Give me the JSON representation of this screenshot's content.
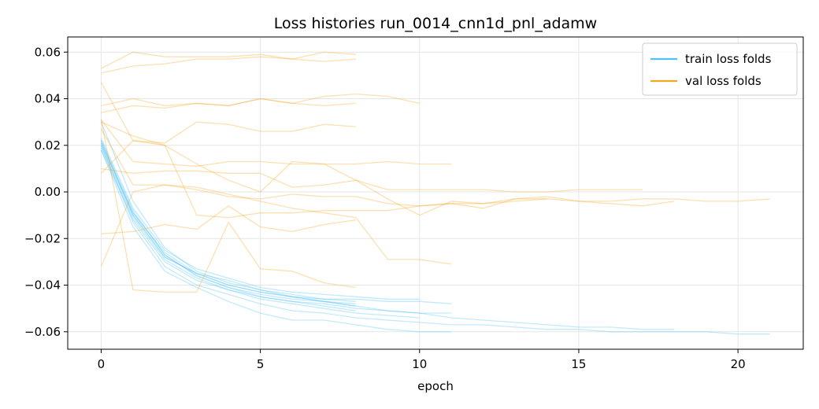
{
  "chart_data": {
    "type": "line",
    "title": "Loss histories run_0014_cnn1d_pnl_adamw",
    "xlabel": "epoch",
    "ylabel": "",
    "xlim": [
      -1.05,
      22.05
    ],
    "ylim": [
      -0.0675,
      0.0665
    ],
    "xticks": [
      0,
      5,
      10,
      15,
      20
    ],
    "yticks": [
      0.06,
      0.04,
      0.02,
      0.0,
      -0.02,
      -0.04,
      -0.06
    ],
    "ytick_labels": [
      "0.06",
      "0.04",
      "0.02",
      "0.00",
      "−0.02",
      "−0.04",
      "−0.06"
    ],
    "grid": true,
    "legend_position": "top-right",
    "legend": [
      {
        "label": "train loss folds",
        "color": "#4fc3f7"
      },
      {
        "label": "val loss folds",
        "color": "#f5a623"
      }
    ],
    "series": [
      {
        "group": "train",
        "color": "#4fc3f7",
        "x": [
          0,
          1,
          2,
          3,
          4,
          5,
          6,
          7,
          8
        ],
        "y": [
          0.021,
          -0.009,
          -0.026,
          -0.035,
          -0.04,
          -0.043,
          -0.045,
          -0.047,
          -0.049
        ]
      },
      {
        "group": "train",
        "color": "#4fc3f7",
        "x": [
          0,
          1,
          2,
          3,
          4,
          5,
          6,
          7,
          8
        ],
        "y": [
          0.022,
          -0.008,
          -0.027,
          -0.036,
          -0.041,
          -0.044,
          -0.046,
          -0.047,
          -0.048
        ]
      },
      {
        "group": "train",
        "color": "#4fc3f7",
        "x": [
          0,
          1,
          2,
          3,
          4,
          5,
          6,
          7,
          8
        ],
        "y": [
          0.018,
          -0.012,
          -0.03,
          -0.038,
          -0.042,
          -0.045,
          -0.047,
          -0.049,
          -0.051
        ]
      },
      {
        "group": "train",
        "color": "#4fc3f7",
        "x": [
          0,
          1,
          2,
          3,
          4,
          5,
          6,
          7,
          8
        ],
        "y": [
          0.02,
          -0.01,
          -0.028,
          -0.035,
          -0.038,
          -0.042,
          -0.044,
          -0.046,
          -0.047
        ]
      },
      {
        "group": "train",
        "color": "#4fc3f7",
        "x": [
          0,
          1,
          2,
          3,
          4,
          5,
          6,
          7,
          8,
          9,
          10
        ],
        "y": [
          0.023,
          -0.007,
          -0.025,
          -0.033,
          -0.037,
          -0.041,
          -0.043,
          -0.044,
          -0.045,
          -0.046,
          -0.046
        ]
      },
      {
        "group": "train",
        "color": "#4fc3f7",
        "x": [
          0,
          1,
          2,
          3,
          4,
          5,
          6,
          7,
          8,
          9,
          10
        ],
        "y": [
          0.019,
          -0.011,
          -0.029,
          -0.037,
          -0.042,
          -0.046,
          -0.048,
          -0.05,
          -0.052,
          -0.053,
          -0.054
        ]
      },
      {
        "group": "train",
        "color": "#4fc3f7",
        "x": [
          0,
          1,
          2,
          3,
          4,
          5,
          6,
          7,
          8,
          9,
          10,
          11
        ],
        "y": [
          0.021,
          -0.009,
          -0.027,
          -0.036,
          -0.041,
          -0.045,
          -0.047,
          -0.048,
          -0.05,
          -0.051,
          -0.052,
          -0.052
        ]
      },
      {
        "group": "train",
        "color": "#4fc3f7",
        "x": [
          0,
          1,
          2,
          3,
          4,
          5,
          6,
          7,
          8,
          9,
          10,
          11
        ],
        "y": [
          0.022,
          -0.01,
          -0.028,
          -0.035,
          -0.04,
          -0.043,
          -0.045,
          -0.046,
          -0.046,
          -0.047,
          -0.047,
          -0.048
        ]
      },
      {
        "group": "train",
        "color": "#4fc3f7",
        "x": [
          0,
          1,
          2,
          3,
          4,
          5,
          6,
          7,
          8,
          9,
          10,
          11,
          12,
          13,
          14,
          15,
          16,
          17,
          18
        ],
        "y": [
          0.03,
          -0.004,
          -0.024,
          -0.034,
          -0.039,
          -0.042,
          -0.045,
          -0.047,
          -0.049,
          -0.051,
          -0.052,
          -0.054,
          -0.055,
          -0.056,
          -0.057,
          -0.058,
          -0.058,
          -0.059,
          -0.059
        ]
      },
      {
        "group": "train",
        "color": "#4fc3f7",
        "x": [
          0,
          1,
          2,
          3,
          4,
          5,
          6,
          7,
          8,
          9,
          10,
          11,
          12,
          13,
          14,
          15,
          16,
          17,
          18,
          19,
          20,
          21
        ],
        "y": [
          0.02,
          -0.013,
          -0.032,
          -0.04,
          -0.044,
          -0.048,
          -0.051,
          -0.052,
          -0.054,
          -0.055,
          -0.056,
          -0.057,
          -0.057,
          -0.058,
          -0.059,
          -0.059,
          -0.06,
          -0.06,
          -0.06,
          -0.06,
          -0.061,
          -0.061
        ]
      },
      {
        "group": "train",
        "color": "#4fc3f7",
        "x": [
          0,
          1,
          2,
          3,
          4,
          5,
          6,
          7,
          8,
          9,
          10,
          11
        ],
        "y": [
          0.018,
          -0.015,
          -0.034,
          -0.041,
          -0.047,
          -0.052,
          -0.055,
          -0.055,
          -0.057,
          -0.059,
          -0.06,
          -0.06
        ]
      },
      {
        "group": "val",
        "color": "#f5a623",
        "x": [
          0,
          1,
          2,
          3,
          4,
          5,
          6,
          7,
          8
        ],
        "y": [
          0.053,
          0.06,
          0.058,
          0.058,
          0.058,
          0.059,
          0.057,
          0.06,
          0.059
        ]
      },
      {
        "group": "val",
        "color": "#f5a623",
        "x": [
          0,
          1,
          2,
          3,
          4,
          5,
          6,
          7,
          8
        ],
        "y": [
          0.051,
          0.054,
          0.055,
          0.057,
          0.057,
          0.058,
          0.057,
          0.056,
          0.057
        ]
      },
      {
        "group": "val",
        "color": "#f5a623",
        "x": [
          0,
          1,
          2,
          3,
          4,
          5,
          6,
          7,
          8,
          9,
          10
        ],
        "y": [
          0.037,
          0.04,
          0.037,
          0.038,
          0.037,
          0.04,
          0.038,
          0.041,
          0.042,
          0.041,
          0.038
        ]
      },
      {
        "group": "val",
        "color": "#f5a623",
        "x": [
          0,
          1,
          2,
          3,
          4,
          5,
          6,
          7,
          8
        ],
        "y": [
          0.034,
          0.037,
          0.036,
          0.038,
          0.037,
          0.04,
          0.038,
          0.037,
          0.038
        ]
      },
      {
        "group": "val",
        "color": "#f5a623",
        "x": [
          0,
          1,
          2,
          3,
          4,
          5,
          6,
          7,
          8
        ],
        "y": [
          0.047,
          0.022,
          0.021,
          0.03,
          0.029,
          0.026,
          0.026,
          0.029,
          0.028
        ]
      },
      {
        "group": "val",
        "color": "#f5a623",
        "x": [
          0,
          1,
          2,
          3,
          4,
          5,
          6,
          7,
          8,
          9,
          10,
          11
        ],
        "y": [
          0.031,
          0.013,
          0.012,
          0.011,
          0.013,
          0.013,
          0.012,
          0.012,
          0.012,
          0.013,
          0.012,
          0.012
        ]
      },
      {
        "group": "val",
        "color": "#f5a623",
        "x": [
          0,
          1,
          2,
          3,
          4,
          5,
          6,
          7,
          8,
          9,
          10,
          11,
          12,
          13,
          14,
          15,
          16,
          17
        ],
        "y": [
          0.03,
          0.024,
          0.02,
          0.012,
          0.005,
          0.0,
          0.013,
          0.012,
          0.005,
          0.001,
          0.001,
          0.001,
          0.001,
          0.0,
          0.0,
          0.001,
          0.001,
          0.001
        ]
      },
      {
        "group": "val",
        "color": "#f5a623",
        "x": [
          0,
          1,
          2,
          3,
          4,
          5,
          6,
          7,
          8,
          9,
          10,
          11,
          12,
          13,
          14,
          15,
          16,
          17,
          18,
          19,
          20,
          21
        ],
        "y": [
          0.01,
          0.008,
          0.009,
          0.009,
          0.008,
          0.008,
          0.002,
          0.003,
          0.005,
          -0.003,
          -0.01,
          -0.004,
          -0.005,
          -0.003,
          -0.003,
          -0.004,
          -0.004,
          -0.003,
          -0.003,
          -0.004,
          -0.004,
          -0.003
        ]
      },
      {
        "group": "val",
        "color": "#f5a623",
        "x": [
          0,
          1,
          2,
          3,
          4,
          5,
          6,
          7,
          8,
          9,
          10,
          11,
          12,
          13,
          14,
          15,
          16,
          17,
          18
        ],
        "y": [
          0.008,
          0.022,
          0.02,
          -0.01,
          -0.011,
          -0.009,
          -0.009,
          -0.008,
          -0.008,
          -0.008,
          -0.006,
          -0.005,
          -0.007,
          -0.003,
          -0.002,
          -0.004,
          -0.005,
          -0.006,
          -0.004
        ]
      },
      {
        "group": "val",
        "color": "#f5a623",
        "x": [
          0,
          1,
          2,
          3,
          4,
          5,
          6,
          7,
          8,
          9,
          10,
          11,
          12,
          13,
          14
        ],
        "y": [
          0.027,
          0.003,
          0.003,
          0.001,
          -0.002,
          -0.003,
          -0.001,
          -0.002,
          -0.002,
          -0.005,
          -0.006,
          -0.005,
          -0.005,
          -0.004,
          -0.003
        ]
      },
      {
        "group": "val",
        "color": "#f5a623",
        "x": [
          0,
          1,
          2,
          3,
          4,
          5,
          6,
          7,
          8
        ],
        "y": [
          -0.018,
          -0.017,
          -0.014,
          -0.016,
          -0.006,
          -0.015,
          -0.017,
          -0.014,
          -0.012
        ]
      },
      {
        "group": "val",
        "color": "#f5a623",
        "x": [
          0,
          1,
          2,
          3,
          4,
          5,
          6,
          7,
          8
        ],
        "y": [
          0.031,
          -0.042,
          -0.043,
          -0.043,
          -0.013,
          -0.033,
          -0.034,
          -0.039,
          -0.041
        ]
      },
      {
        "group": "val",
        "color": "#f5a623",
        "x": [
          0,
          1,
          2,
          3,
          4,
          5,
          6,
          7,
          8,
          9,
          10,
          11
        ],
        "y": [
          -0.032,
          0.0,
          0.003,
          0.002,
          -0.001,
          -0.004,
          -0.007,
          -0.009,
          -0.011,
          -0.029,
          -0.029,
          -0.031
        ]
      }
    ]
  }
}
